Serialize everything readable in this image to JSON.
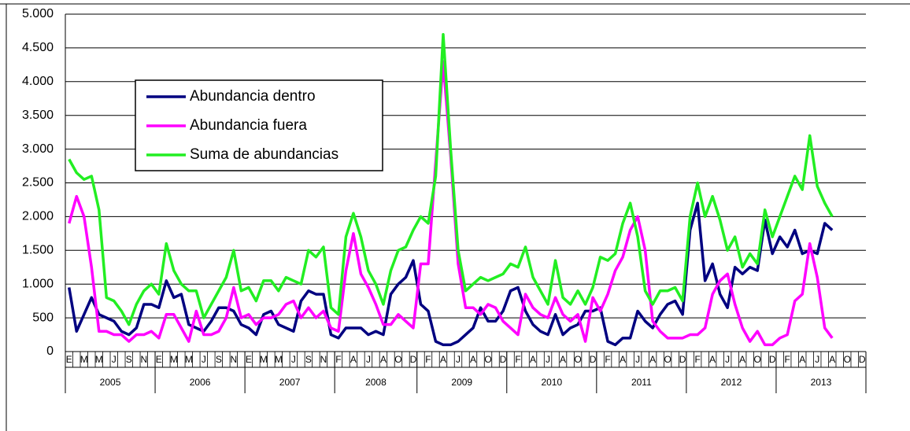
{
  "chart_data": {
    "type": "line",
    "ylim": [
      0,
      5000
    ],
    "yticks": [
      0,
      500,
      {
        "value": 1000,
        "label": "1.000"
      },
      {
        "value": 1500,
        "label": "1.500"
      },
      {
        "value": 2000,
        "label": "2.000"
      },
      {
        "value": 2500,
        "label": "2.500"
      },
      {
        "value": 3000,
        "label": "3.000"
      },
      {
        "value": 3500,
        "label": "3.500"
      },
      {
        "value": 4000,
        "label": "4.000"
      },
      {
        "value": 4500,
        "label": "4.500"
      },
      {
        "value": 5000,
        "label": "5.000"
      }
    ],
    "grid": true,
    "categories": [
      "E",
      null,
      "M",
      null,
      "M",
      null,
      "J",
      null,
      "S",
      null,
      "N",
      null,
      "E",
      null,
      "M",
      null,
      "M",
      null,
      "J",
      null,
      "S",
      null,
      "N",
      null,
      "E",
      null,
      "M",
      null,
      "M",
      null,
      "J",
      null,
      "S",
      null,
      "N",
      null,
      "F",
      null,
      "A",
      null,
      "J",
      null,
      "A",
      null,
      "O",
      null,
      "D",
      null,
      "F",
      null,
      "A",
      null,
      "J",
      null,
      "A",
      null,
      "O",
      null,
      "D",
      null,
      "F",
      null,
      "A",
      null,
      "J",
      null,
      "A",
      null,
      "O",
      null,
      "D",
      null,
      "F",
      null,
      "A",
      null,
      "J",
      null,
      "A",
      null,
      "O",
      null,
      "D",
      null,
      "F",
      null,
      "A",
      null,
      "J",
      null,
      "A",
      null,
      "O",
      null,
      "D",
      null,
      "F",
      null,
      "A",
      null,
      "J",
      null,
      "A",
      null,
      "O",
      null,
      "D"
    ],
    "year_groups": [
      {
        "label": "2005",
        "months": 12
      },
      {
        "label": "2006",
        "months": 12
      },
      {
        "label": "2007",
        "months": 12
      },
      {
        "label": "2008",
        "months": 11
      },
      {
        "label": "2009",
        "months": 12
      },
      {
        "label": "2010",
        "months": 12
      },
      {
        "label": "2011",
        "months": 12
      },
      {
        "label": "2012",
        "months": 12
      },
      {
        "label": "2013",
        "months": 12
      }
    ],
    "series": [
      {
        "name": "Abundancia dentro",
        "color": "#000080",
        "values": [
          950,
          300,
          550,
          800,
          550,
          500,
          450,
          300,
          250,
          350,
          700,
          700,
          650,
          1050,
          800,
          850,
          400,
          350,
          300,
          450,
          650,
          650,
          600,
          400,
          350,
          250,
          550,
          600,
          400,
          350,
          300,
          750,
          900,
          850,
          850,
          250,
          200,
          350,
          350,
          350,
          250,
          300,
          250,
          850,
          1000,
          1100,
          1350,
          700,
          600,
          150,
          100,
          100,
          150,
          250,
          350,
          650,
          450,
          450,
          600,
          900,
          950,
          600,
          400,
          300,
          250,
          550,
          250,
          350,
          400,
          600,
          600,
          650,
          150,
          100,
          200,
          200,
          600,
          450,
          350,
          550,
          700,
          750,
          550,
          1800,
          2200,
          1050,
          1300,
          850,
          650,
          1250,
          1150,
          1250,
          1200,
          1950,
          1450,
          1700,
          1550,
          1800,
          1450,
          1500,
          1450,
          1900,
          1800,
          null,
          null,
          null,
          null
        ]
      },
      {
        "name": "Abundancia fuera",
        "color": "#ff00ff",
        "values": [
          1900,
          2300,
          2000,
          1250,
          300,
          300,
          250,
          250,
          150,
          250,
          250,
          300,
          200,
          550,
          550,
          350,
          150,
          600,
          250,
          250,
          300,
          500,
          950,
          500,
          550,
          400,
          500,
          500,
          550,
          700,
          750,
          500,
          650,
          500,
          600,
          350,
          300,
          1200,
          1750,
          1150,
          950,
          700,
          400,
          400,
          550,
          450,
          350,
          1300,
          1300,
          2800,
          4300,
          2900,
          1300,
          650,
          650,
          550,
          700,
          650,
          450,
          350,
          250,
          850,
          650,
          550,
          500,
          800,
          550,
          450,
          550,
          150,
          800,
          600,
          850,
          1200,
          1400,
          1800,
          2000,
          1500,
          450,
          300,
          200,
          200,
          200,
          250,
          250,
          350,
          850,
          1050,
          1150,
          700,
          350,
          150,
          300,
          100,
          100,
          200,
          250,
          750,
          850,
          1600,
          1100,
          350,
          200,
          null,
          null,
          null,
          null
        ]
      },
      {
        "name": "Suma de abundancias",
        "color": "#22ee22",
        "values": [
          2850,
          2650,
          2550,
          2600,
          2100,
          800,
          750,
          600,
          400,
          700,
          900,
          1000,
          850,
          1600,
          1200,
          1000,
          900,
          900,
          500,
          700,
          900,
          1100,
          1500,
          900,
          950,
          750,
          1050,
          1050,
          900,
          1100,
          1050,
          1000,
          1500,
          1400,
          1550,
          650,
          550,
          1700,
          2050,
          1700,
          1200,
          1000,
          700,
          1200,
          1500,
          1550,
          1800,
          2000,
          1900,
          2600,
          4700,
          3000,
          1500,
          900,
          1000,
          1100,
          1050,
          1100,
          1150,
          1300,
          1250,
          1550,
          1100,
          900,
          700,
          1350,
          800,
          700,
          900,
          700,
          950,
          1400,
          1350,
          1450,
          1900,
          2200,
          1700,
          900,
          700,
          900,
          900,
          950,
          750,
          2000,
          2500,
          2000,
          2300,
          1950,
          1500,
          1700,
          1250,
          1450,
          1300,
          2100,
          1700,
          2000,
          2300,
          2600,
          2400,
          3200,
          2450,
          2200,
          2000,
          null,
          null,
          null,
          null
        ]
      }
    ]
  }
}
